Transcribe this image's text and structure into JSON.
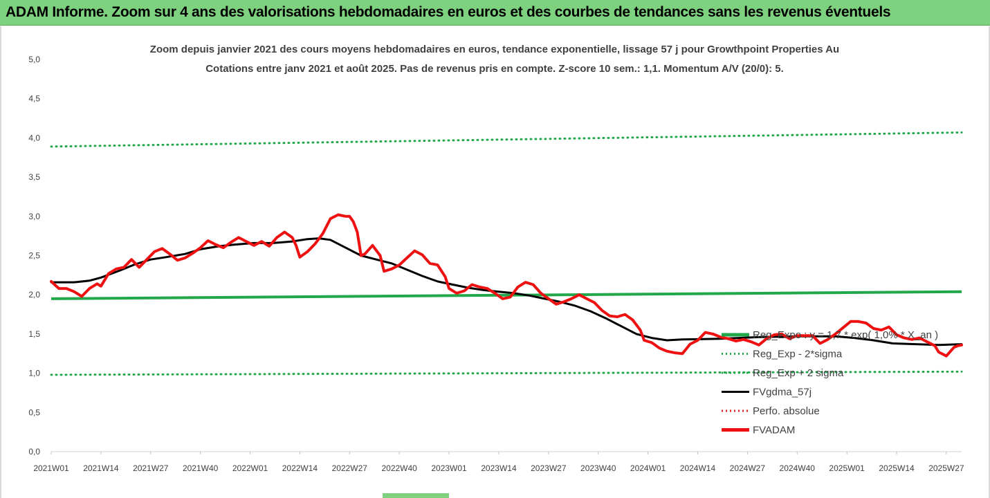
{
  "banner": {
    "title": "ADAM Informe. Zoom sur 4 ans des valorisations hebdomadaires en euros et des courbes de tendances sans les revenus éventuels"
  },
  "colors": {
    "banner_bg": "#7ed17e",
    "reg_expo": "#22a84a",
    "fvgdma": "#000000",
    "perfo": "#e02020",
    "fvadam": "#ee1111"
  },
  "chart_data": {
    "type": "line",
    "title_line1": "Zoom depuis janvier 2021 des cours moyens hebdomadaires en euros, tendance exponentielle, lissage 57 j pour Growthpoint Properties Au",
    "title_line2": "Cotations entre janv 2021 et août 2025.  Pas de revenus pris en compte. Z-score 10 sem.: 1,1. Momentum A/V (20/0): 5.",
    "ylim": [
      0,
      5
    ],
    "y_ticks": [
      "0,0",
      "0,5",
      "1,0",
      "1,5",
      "2,0",
      "2,5",
      "3,0",
      "3,5",
      "4,0",
      "4,5",
      "5,0"
    ],
    "x_ticks": [
      "2021W01",
      "2021W14",
      "2021W27",
      "2021W40",
      "2022W01",
      "2022W14",
      "2022W27",
      "2022W40",
      "2023W01",
      "2023W14",
      "2023W27",
      "2023W40",
      "2024W01",
      "2024W14",
      "2024W27",
      "2024W40",
      "2025W01",
      "2025W14",
      "2025W27"
    ],
    "n_weeks": 239,
    "legend_position": "right",
    "legend": [
      {
        "label": "Reg_Expo : y = 1,7 * exp( 1,0% *  X_an )",
        "style": "solid-thick",
        "color": "#22a84a"
      },
      {
        "label": "Reg_Exp - 2*sigma",
        "style": "dotted",
        "color": "#22a84a"
      },
      {
        "label": "Reg_Exp + 2 sigma",
        "style": "dotted",
        "color": "#22a84a"
      },
      {
        "label": "FVgdma_57j",
        "style": "solid",
        "color": "#000000"
      },
      {
        "label": "Perfo. absolue",
        "style": "dotted",
        "color": "#e02020"
      },
      {
        "label": "FVADAM",
        "style": "solid-thick",
        "color": "#ee1111"
      }
    ],
    "series": [
      {
        "name": "Reg_Expo : y = 1,7 * exp( 1,0% *  X_an )",
        "points": [
          [
            0,
            1.95
          ],
          [
            238,
            2.04
          ]
        ]
      },
      {
        "name": "Reg_Exp - 2*sigma",
        "points": [
          [
            0,
            0.98
          ],
          [
            238,
            1.02
          ]
        ]
      },
      {
        "name": "Reg_Exp + 2 sigma",
        "points": [
          [
            0,
            3.89
          ],
          [
            238,
            4.07
          ]
        ]
      },
      {
        "name": "FVgdma_57j",
        "points": [
          [
            0,
            2.16
          ],
          [
            6,
            2.16
          ],
          [
            10,
            2.18
          ],
          [
            13,
            2.22
          ],
          [
            18,
            2.31
          ],
          [
            22,
            2.39
          ],
          [
            26,
            2.45
          ],
          [
            30,
            2.48
          ],
          [
            35,
            2.52
          ],
          [
            39,
            2.58
          ],
          [
            44,
            2.62
          ],
          [
            48,
            2.64
          ],
          [
            53,
            2.66
          ],
          [
            58,
            2.66
          ],
          [
            63,
            2.68
          ],
          [
            67,
            2.71
          ],
          [
            70,
            2.72
          ],
          [
            73,
            2.7
          ],
          [
            77,
            2.6
          ],
          [
            81,
            2.5
          ],
          [
            85,
            2.45
          ],
          [
            89,
            2.4
          ],
          [
            93,
            2.32
          ],
          [
            97,
            2.24
          ],
          [
            101,
            2.17
          ],
          [
            105,
            2.13
          ],
          [
            109,
            2.09
          ],
          [
            113,
            2.06
          ],
          [
            117,
            2.04
          ],
          [
            121,
            2.02
          ],
          [
            125,
            1.99
          ],
          [
            129,
            1.95
          ],
          [
            133,
            1.91
          ],
          [
            137,
            1.86
          ],
          [
            141,
            1.79
          ],
          [
            145,
            1.7
          ],
          [
            149,
            1.6
          ],
          [
            153,
            1.5
          ],
          [
            157,
            1.45
          ],
          [
            161,
            1.42
          ],
          [
            165,
            1.43
          ],
          [
            175,
            1.44
          ],
          [
            185,
            1.46
          ],
          [
            195,
            1.47
          ],
          [
            205,
            1.47
          ],
          [
            210,
            1.45
          ],
          [
            215,
            1.42
          ],
          [
            220,
            1.38
          ],
          [
            226,
            1.37
          ],
          [
            232,
            1.36
          ],
          [
            238,
            1.37
          ]
        ]
      },
      {
        "name": "FVADAM",
        "points": [
          [
            0,
            2.17
          ],
          [
            2,
            2.08
          ],
          [
            4,
            2.08
          ],
          [
            6,
            2.04
          ],
          [
            8,
            1.98
          ],
          [
            10,
            2.08
          ],
          [
            12,
            2.14
          ],
          [
            13,
            2.11
          ],
          [
            15,
            2.27
          ],
          [
            17,
            2.33
          ],
          [
            19,
            2.35
          ],
          [
            21,
            2.45
          ],
          [
            23,
            2.35
          ],
          [
            25,
            2.45
          ],
          [
            27,
            2.55
          ],
          [
            29,
            2.59
          ],
          [
            31,
            2.52
          ],
          [
            33,
            2.44
          ],
          [
            35,
            2.47
          ],
          [
            37,
            2.53
          ],
          [
            39,
            2.6
          ],
          [
            41,
            2.69
          ],
          [
            43,
            2.64
          ],
          [
            45,
            2.6
          ],
          [
            47,
            2.67
          ],
          [
            49,
            2.73
          ],
          [
            51,
            2.68
          ],
          [
            53,
            2.63
          ],
          [
            55,
            2.68
          ],
          [
            57,
            2.62
          ],
          [
            59,
            2.73
          ],
          [
            61,
            2.8
          ],
          [
            63,
            2.73
          ],
          [
            64,
            2.63
          ],
          [
            65,
            2.48
          ],
          [
            67,
            2.55
          ],
          [
            69,
            2.65
          ],
          [
            71,
            2.78
          ],
          [
            73,
            2.97
          ],
          [
            75,
            3.02
          ],
          [
            77,
            3.0
          ],
          [
            78,
            3.0
          ],
          [
            79,
            2.93
          ],
          [
            80,
            2.8
          ],
          [
            81,
            2.5
          ],
          [
            82,
            2.52
          ],
          [
            84,
            2.63
          ],
          [
            86,
            2.5
          ],
          [
            87,
            2.3
          ],
          [
            89,
            2.33
          ],
          [
            91,
            2.38
          ],
          [
            93,
            2.47
          ],
          [
            95,
            2.56
          ],
          [
            97,
            2.51
          ],
          [
            99,
            2.4
          ],
          [
            101,
            2.38
          ],
          [
            103,
            2.23
          ],
          [
            104,
            2.08
          ],
          [
            106,
            2.02
          ],
          [
            108,
            2.05
          ],
          [
            110,
            2.13
          ],
          [
            112,
            2.1
          ],
          [
            114,
            2.08
          ],
          [
            116,
            2.02
          ],
          [
            118,
            1.95
          ],
          [
            120,
            1.97
          ],
          [
            122,
            2.1
          ],
          [
            124,
            2.16
          ],
          [
            126,
            2.13
          ],
          [
            128,
            2.02
          ],
          [
            130,
            1.95
          ],
          [
            132,
            1.88
          ],
          [
            134,
            1.91
          ],
          [
            136,
            1.95
          ],
          [
            138,
            2.0
          ],
          [
            140,
            1.95
          ],
          [
            142,
            1.9
          ],
          [
            144,
            1.8
          ],
          [
            146,
            1.73
          ],
          [
            148,
            1.72
          ],
          [
            150,
            1.75
          ],
          [
            152,
            1.68
          ],
          [
            154,
            1.55
          ],
          [
            155,
            1.42
          ],
          [
            157,
            1.39
          ],
          [
            159,
            1.32
          ],
          [
            161,
            1.28
          ],
          [
            163,
            1.26
          ],
          [
            165,
            1.25
          ],
          [
            167,
            1.37
          ],
          [
            169,
            1.42
          ],
          [
            171,
            1.52
          ],
          [
            173,
            1.5
          ],
          [
            175,
            1.46
          ],
          [
            177,
            1.44
          ],
          [
            179,
            1.41
          ],
          [
            181,
            1.43
          ],
          [
            183,
            1.4
          ],
          [
            185,
            1.36
          ],
          [
            187,
            1.44
          ],
          [
            189,
            1.49
          ],
          [
            191,
            1.5
          ],
          [
            193,
            1.44
          ],
          [
            195,
            1.48
          ],
          [
            197,
            1.48
          ],
          [
            199,
            1.48
          ],
          [
            201,
            1.38
          ],
          [
            203,
            1.43
          ],
          [
            205,
            1.5
          ],
          [
            207,
            1.58
          ],
          [
            209,
            1.66
          ],
          [
            211,
            1.66
          ],
          [
            213,
            1.64
          ],
          [
            215,
            1.57
          ],
          [
            217,
            1.55
          ],
          [
            219,
            1.59
          ],
          [
            221,
            1.49
          ],
          [
            223,
            1.45
          ],
          [
            225,
            1.43
          ],
          [
            227,
            1.45
          ],
          [
            229,
            1.4
          ],
          [
            231,
            1.35
          ],
          [
            232,
            1.27
          ],
          [
            234,
            1.22
          ],
          [
            236,
            1.33
          ],
          [
            237,
            1.35
          ],
          [
            238,
            1.36
          ]
        ]
      }
    ]
  }
}
